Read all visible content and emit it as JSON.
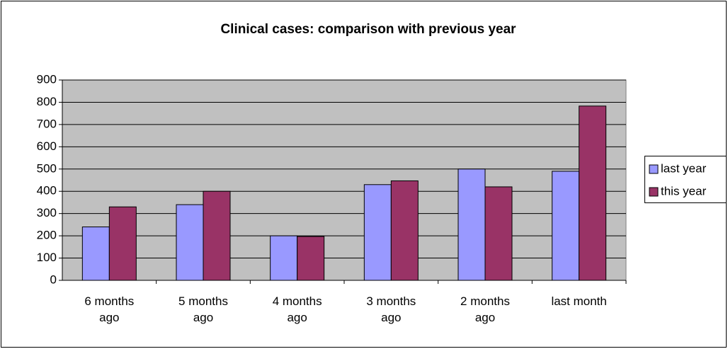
{
  "chart_data": {
    "type": "bar",
    "title": "Clinical cases: comparison with previous year",
    "categories": [
      "6 months ago",
      "5 months ago",
      "4 months ago",
      "3 months ago",
      "2 months ago",
      "last month"
    ],
    "series": [
      {
        "name": "last year",
        "color": "#9999ff",
        "values": [
          240,
          340,
          200,
          430,
          500,
          490
        ]
      },
      {
        "name": "this year",
        "color": "#993366",
        "values": [
          330,
          400,
          197,
          447,
          420,
          783
        ]
      }
    ],
    "ylim": [
      0,
      900
    ],
    "yticks": [
      0,
      100,
      200,
      300,
      400,
      500,
      600,
      700,
      800,
      900
    ],
    "grid": true,
    "legend": "right"
  }
}
